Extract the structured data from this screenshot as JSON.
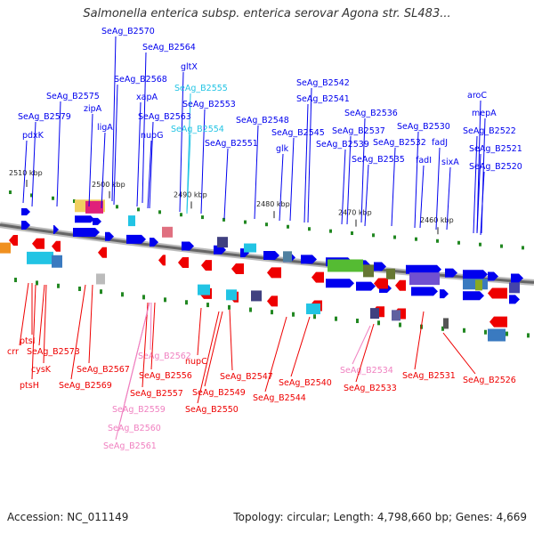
{
  "title": "Salmonella enterica subsp. enterica serovar Agona str. SL483...",
  "footer": {
    "accession": "Accession: NC_011149",
    "topology": "Topology: circular; Length: 4,798,660 bp; Genes: 4,669"
  },
  "colors": {
    "forward": "#0000ee",
    "reverse": "#ee0000",
    "cyan_label": "#22c4e4",
    "pink_label": "#f080c0",
    "backbone": "#666666",
    "tick": "#228822"
  },
  "kbp_ticks": [
    "2510 kbp",
    "2500 kbp",
    "2490 kbp",
    "2480 kbp",
    "2470 kbp",
    "2460 kbp"
  ],
  "forward_labels": [
    {
      "text": "SeAg_B2570",
      "color": "blue"
    },
    {
      "text": "SeAg_B2564",
      "color": "blue"
    },
    {
      "text": "gltX",
      "color": "blue"
    },
    {
      "text": "SeAg_B2568",
      "color": "blue"
    },
    {
      "text": "SeAg_B2555",
      "color": "cyan"
    },
    {
      "text": "SeAg_B2575",
      "color": "blue"
    },
    {
      "text": "xapA",
      "color": "blue"
    },
    {
      "text": "zipA",
      "color": "blue"
    },
    {
      "text": "SeAg_B2553",
      "color": "blue"
    },
    {
      "text": "SeAg_B2579",
      "color": "blue"
    },
    {
      "text": "SeAg_B2563",
      "color": "blue"
    },
    {
      "text": "ligA",
      "color": "blue"
    },
    {
      "text": "nupG",
      "color": "blue"
    },
    {
      "text": "SeAg_B2554",
      "color": "cyan"
    },
    {
      "text": "pdxK",
      "color": "blue"
    },
    {
      "text": "SeAg_B2548",
      "color": "blue"
    },
    {
      "text": "SeAg_B2551",
      "color": "blue"
    },
    {
      "text": "SeAg_B2545",
      "color": "blue"
    },
    {
      "text": "glk",
      "color": "blue"
    },
    {
      "text": "SeAg_B2542",
      "color": "blue"
    },
    {
      "text": "SeAg_B2541",
      "color": "blue"
    },
    {
      "text": "SeAg_B2536",
      "color": "blue"
    },
    {
      "text": "SeAg_B2537",
      "color": "blue"
    },
    {
      "text": "SeAg_B2539",
      "color": "blue"
    },
    {
      "text": "SeAg_B2535",
      "color": "blue"
    },
    {
      "text": "SeAg_B2532",
      "color": "blue"
    },
    {
      "text": "SeAg_B2530",
      "color": "blue"
    },
    {
      "text": "fadI",
      "color": "blue"
    },
    {
      "text": "fadJ",
      "color": "blue"
    },
    {
      "text": "sixA",
      "color": "blue"
    },
    {
      "text": "aroC",
      "color": "blue"
    },
    {
      "text": "mepA",
      "color": "blue"
    },
    {
      "text": "SeAg_B2522",
      "color": "blue"
    },
    {
      "text": "SeAg_B2521",
      "color": "blue"
    },
    {
      "text": "SeAg_B2520",
      "color": "blue"
    }
  ],
  "reverse_labels": [
    {
      "text": "ptsI",
      "color": "red"
    },
    {
      "text": "crr",
      "color": "red"
    },
    {
      "text": "SeAg_B2573",
      "color": "red"
    },
    {
      "text": "cysK",
      "color": "red"
    },
    {
      "text": "ptsH",
      "color": "red"
    },
    {
      "text": "SeAg_B2567",
      "color": "red"
    },
    {
      "text": "SeAg_B2569",
      "color": "red"
    },
    {
      "text": "SeAg_B2562",
      "color": "pink"
    },
    {
      "text": "SeAg_B2556",
      "color": "red"
    },
    {
      "text": "SeAg_B2557",
      "color": "red"
    },
    {
      "text": "SeAg_B2559",
      "color": "pink"
    },
    {
      "text": "SeAg_B2560",
      "color": "pink"
    },
    {
      "text": "SeAg_B2561",
      "color": "pink"
    },
    {
      "text": "nupC",
      "color": "red"
    },
    {
      "text": "SeAg_B2547",
      "color": "red"
    },
    {
      "text": "SeAg_B2549",
      "color": "red"
    },
    {
      "text": "SeAg_B2550",
      "color": "red"
    },
    {
      "text": "SeAg_B2544",
      "color": "red"
    },
    {
      "text": "SeAg_B2540",
      "color": "red"
    },
    {
      "text": "SeAg_B2534",
      "color": "pink"
    },
    {
      "text": "SeAg_B2533",
      "color": "red"
    },
    {
      "text": "SeAg_B2531",
      "color": "red"
    },
    {
      "text": "SeAg_B2526",
      "color": "red"
    }
  ]
}
